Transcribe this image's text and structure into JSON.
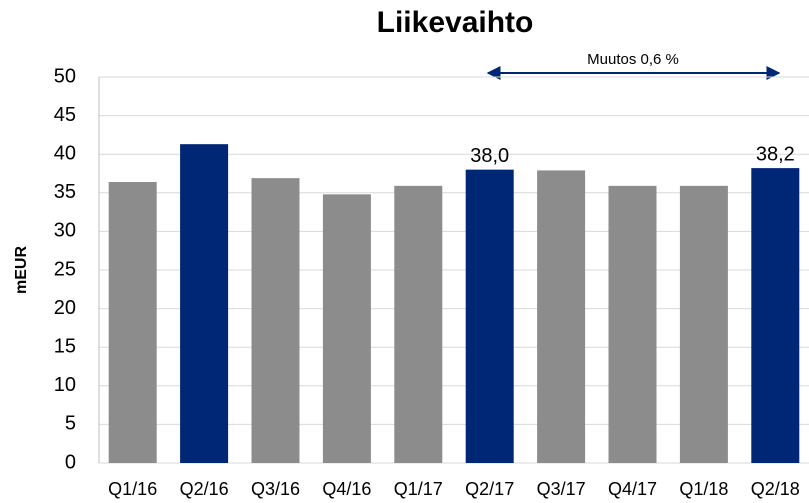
{
  "chart_data": {
    "type": "bar",
    "title": "Liikevaihto",
    "y_label": "mEUR",
    "annotation": "Muutos 0,6 %",
    "categories": [
      "Q1/16",
      "Q2/16",
      "Q3/16",
      "Q4/16",
      "Q1/17",
      "Q2/17",
      "Q3/17",
      "Q4/17",
      "Q1/18",
      "Q2/18"
    ],
    "values": [
      36.4,
      41.3,
      36.9,
      34.8,
      35.9,
      38.0,
      37.9,
      35.9,
      35.9,
      38.2
    ],
    "value_labels": [
      null,
      null,
      null,
      null,
      null,
      "38,0",
      null,
      null,
      null,
      "38,2"
    ],
    "colors": [
      "#8c8c8c",
      "#002776",
      "#8c8c8c",
      "#8c8c8c",
      "#8c8c8c",
      "#002776",
      "#8c8c8c",
      "#8c8c8c",
      "#8c8c8c",
      "#002776"
    ],
    "ylim": [
      0,
      50
    ],
    "yticks": [
      0,
      5,
      10,
      15,
      20,
      25,
      30,
      35,
      40,
      45,
      50
    ],
    "grid": true
  }
}
